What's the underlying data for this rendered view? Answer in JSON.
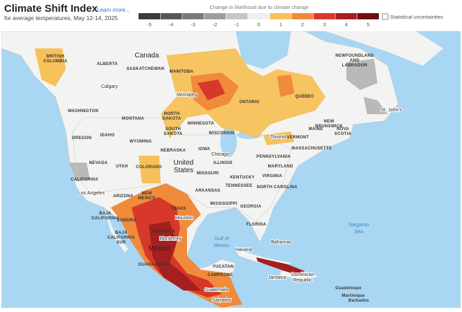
{
  "header": {
    "title": "Climate Shift Index",
    "link": "Learn more...",
    "subtitle": "for average temperatures, May 12-14, 2025"
  },
  "legend": {
    "title": "Change in likelihood due to climate change",
    "levels": [
      {
        "value": -5,
        "color": "#3b3b3b"
      },
      {
        "value": -4,
        "color": "#585858"
      },
      {
        "value": -3,
        "color": "#7a7a7a"
      },
      {
        "value": -2,
        "color": "#9d9d9d"
      },
      {
        "value": -1,
        "color": "#c6c6c6"
      },
      {
        "value": 0,
        "color": "#efefef"
      },
      {
        "value": 1,
        "color": "#f7c15a"
      },
      {
        "value": 2,
        "color": "#ef8b3b"
      },
      {
        "value": 3,
        "color": "#d6382a"
      },
      {
        "value": 4,
        "color": "#a41f1f"
      },
      {
        "value": 5,
        "color": "#6b1010"
      }
    ],
    "uncertainty": "Statistical uncertainties"
  },
  "map": {
    "labels": [
      "Canada",
      "ALBERTA",
      "BRITISH",
      "COLUMBIA",
      "SASKATCHEWAN",
      "MANITOBA",
      "Winnipeg",
      "ONTARIO",
      "QUÉBEC",
      "NEWFOUNDLAND",
      "AND",
      "LABRADOR",
      "St. John's",
      "Calgary",
      "WASHINGTON",
      "MONTANA",
      "NORTH",
      "DAKOTA",
      "MINNESOTA",
      "SOUTH",
      "DAKOTA",
      "WISCONSIN",
      "IDAHO",
      "WYOMING",
      "OREGON",
      "NEBRASKA",
      "IOWA",
      "Chicago",
      "NEVADA",
      "UTAH",
      "COLORADO",
      "ILLINOIS",
      "United",
      "States",
      "MISSOURI",
      "KENTUCKY",
      "VIRGINIA",
      "MARYLAND",
      "PENNSYLVANIA",
      "NEW",
      "BRUNSWICK",
      "NOVA",
      "SCOTIA",
      "MAINE",
      "VERMONT",
      "Toronto",
      "MASSACHUSETTS",
      "CALIFORNIA",
      "Los Angeles",
      "ARIZONA",
      "NEW",
      "MEXICO",
      "TENNESSEE",
      "ARKANSAS",
      "NORTH CAROLINA",
      "TEXAS",
      "MISSISSIPPI",
      "GEORGIA",
      "Houston",
      "BAJA",
      "CALIFORNIA",
      "SONORA",
      "FLORIDA",
      "Sargasso",
      "Sea",
      "Gulf of",
      "Mexico",
      "COAHUILA",
      "Monterrey",
      "BAJA",
      "CALIFORNIA",
      "SUR",
      "México",
      "Havana",
      "Bahamas",
      "YUCATAN",
      "GUANAJUATO",
      "CAMPECHE",
      "Jamaica",
      "Dominican",
      "Republic",
      "Guatemala",
      "Salvador",
      "Guadeloupe",
      "Martinique",
      "Barbados"
    ]
  }
}
